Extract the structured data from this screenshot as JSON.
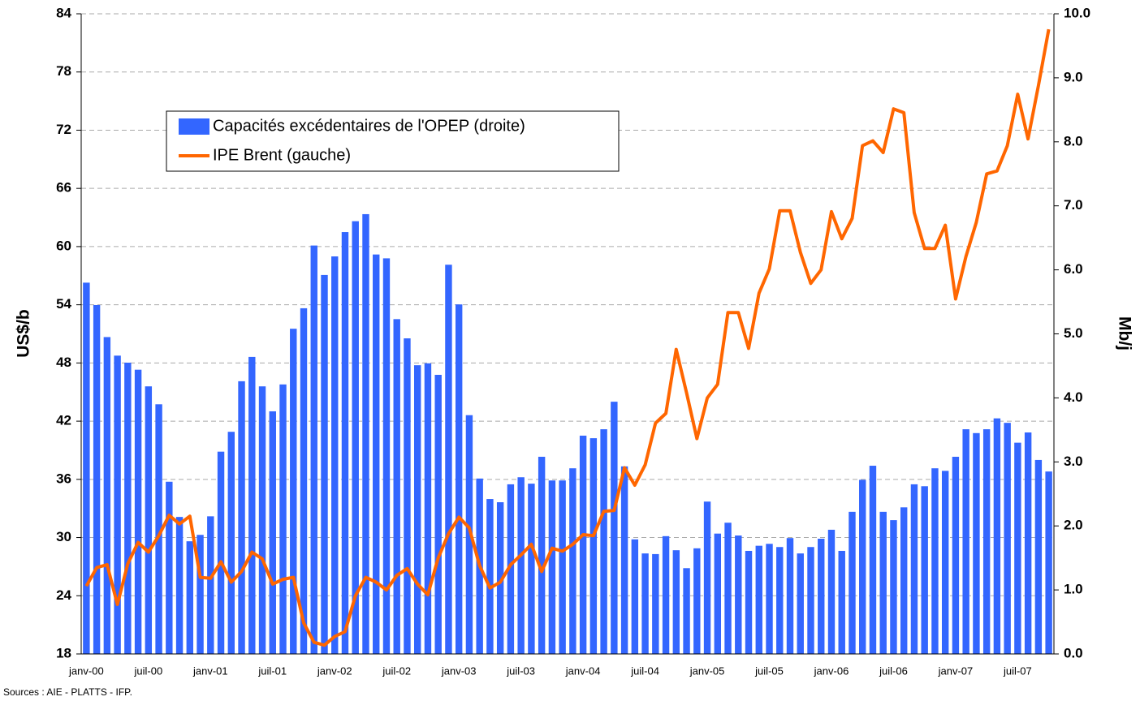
{
  "chart_data": {
    "type": "bar_line",
    "ylabel": "US$/b",
    "y2label": "Mb/j",
    "source": "Sources : AIE - PLATTS - IFP.",
    "categories": [
      "janv-00",
      null,
      null,
      null,
      null,
      null,
      "juil-00",
      null,
      null,
      null,
      null,
      null,
      "janv-01",
      null,
      null,
      null,
      null,
      null,
      "juil-01",
      null,
      null,
      null,
      null,
      null,
      "janv-02",
      null,
      null,
      null,
      null,
      null,
      "juil-02",
      null,
      null,
      null,
      null,
      null,
      "janv-03",
      null,
      null,
      null,
      null,
      null,
      "juil-03",
      null,
      null,
      null,
      null,
      null,
      "janv-04",
      null,
      null,
      null,
      null,
      null,
      "juil-04",
      null,
      null,
      null,
      null,
      null,
      "janv-05",
      null,
      null,
      null,
      null,
      null,
      "juil-05",
      null,
      null,
      null,
      null,
      null,
      "janv-06",
      null,
      null,
      null,
      null,
      null,
      "juil-06",
      null,
      null,
      null,
      null,
      null,
      "janv-07",
      null,
      null,
      null,
      null,
      null,
      "juil-07",
      null,
      null,
      null
    ],
    "series": [
      {
        "name": "Capacités excédentaires de l'OPEP (droite)",
        "type": "bar",
        "axis": "y2",
        "color": "#3366ff",
        "values": [
          5.8,
          5.45,
          4.95,
          4.66,
          4.55,
          4.44,
          4.18,
          3.9,
          2.69,
          2.14,
          1.76,
          1.86,
          2.15,
          3.16,
          3.47,
          4.26,
          4.64,
          4.18,
          3.79,
          4.21,
          5.08,
          5.4,
          6.38,
          5.92,
          6.21,
          6.59,
          6.76,
          6.87,
          6.24,
          6.18,
          5.23,
          4.93,
          4.51,
          4.54,
          4.36,
          6.08,
          5.46,
          3.73,
          2.74,
          2.42,
          2.37,
          2.65,
          2.76,
          2.66,
          3.08,
          2.71,
          2.71,
          2.9,
          3.41,
          3.37,
          3.51,
          3.94,
          2.93,
          1.79,
          1.57,
          1.56,
          1.84,
          1.62,
          1.34,
          1.65,
          2.38,
          1.88,
          2.05,
          1.85,
          1.61,
          1.69,
          1.72,
          1.67,
          1.81,
          1.57,
          1.67,
          1.8,
          1.94,
          1.61,
          2.22,
          2.72,
          2.94,
          2.22,
          2.09,
          2.29,
          2.65,
          2.62,
          2.9,
          2.86,
          3.08,
          3.51,
          3.45,
          3.51,
          3.68,
          3.61,
          3.3,
          3.46,
          3.03,
          2.85
        ]
      },
      {
        "name": "IPE Brent (gauche)",
        "type": "line",
        "color": "#ff6600",
        "values": [
          25.0,
          26.9,
          27.2,
          23.1,
          27.3,
          29.5,
          28.5,
          30.2,
          32.3,
          31.4,
          32.2,
          25.9,
          25.8,
          27.5,
          25.4,
          26.5,
          28.5,
          27.8,
          25.2,
          25.7,
          25.9,
          21.2,
          19.2,
          18.9,
          19.8,
          20.3,
          24.0,
          25.9,
          25.4,
          24.6,
          26.1,
          26.8,
          25.2,
          24.1,
          27.9,
          30.4,
          32.1,
          31.0,
          27.1,
          24.8,
          25.4,
          27.2,
          28.2,
          29.3,
          26.5,
          28.9,
          28.6,
          29.3,
          30.3,
          30.2,
          32.7,
          32.8,
          37.2,
          35.4,
          37.5,
          41.8,
          42.8,
          49.4,
          44.9,
          40.2,
          44.4,
          45.8,
          53.2,
          53.2,
          49.5,
          55.2,
          57.7,
          63.7,
          63.7,
          59.4,
          56.2,
          57.6,
          63.6,
          60.8,
          62.9,
          70.4,
          70.9,
          69.7,
          74.2,
          73.8,
          63.5,
          59.8,
          59.8,
          62.2,
          54.6,
          59.0,
          62.5,
          67.5,
          67.8,
          70.4,
          75.7,
          71.1,
          76.6,
          82.4
        ]
      }
    ],
    "ylim": [
      18,
      84
    ],
    "yticks": [
      18,
      24,
      30,
      36,
      42,
      48,
      54,
      60,
      66,
      72,
      78,
      84
    ],
    "y2lim": [
      0,
      10
    ],
    "y2ticks": [
      {
        "value": 0,
        "label": "0.0"
      },
      {
        "value": 1,
        "label": "1.0"
      },
      {
        "value": 2,
        "label": "2.0"
      },
      {
        "value": 3,
        "label": "3.0"
      },
      {
        "value": 4,
        "label": "4.0"
      },
      {
        "value": 5,
        "label": "5.0"
      },
      {
        "value": 6,
        "label": "6.0"
      },
      {
        "value": 7,
        "label": "7.0"
      },
      {
        "value": 8,
        "label": "8.0"
      },
      {
        "value": 9,
        "label": "9.0"
      },
      {
        "value": 10,
        "label": "10.0"
      }
    ],
    "grid": true
  }
}
